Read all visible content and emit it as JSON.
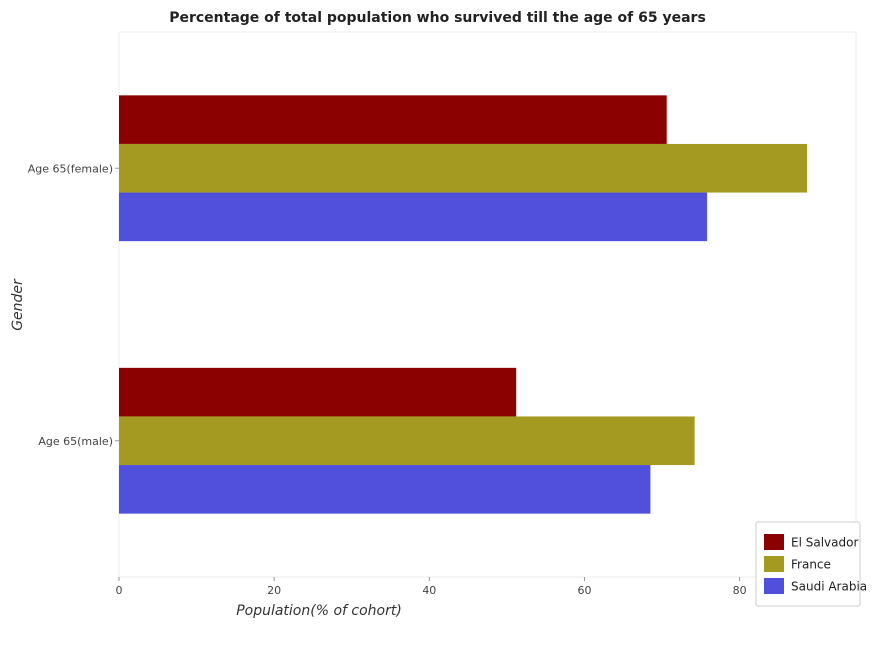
{
  "chart_data": {
    "type": "bar",
    "orientation": "horizontal",
    "title": "Percentage of total population who survived till the age of 65 years",
    "xlabel": "Population(% of cohort)",
    "ylabel": "Gender",
    "xlim": [
      0,
      95
    ],
    "xticks": [
      0,
      20,
      40,
      60,
      80
    ],
    "categories": [
      "Age 65(female)",
      "Age 65(male)"
    ],
    "series": [
      {
        "name": "El Salvador",
        "color": "#8b0000",
        "values": [
          70.6,
          51.2
        ]
      },
      {
        "name": "France",
        "color": "#a49a22",
        "values": [
          88.7,
          74.2
        ]
      },
      {
        "name": "Saudi Arabia",
        "color": "#5050dc",
        "values": [
          75.8,
          68.5
        ]
      }
    ],
    "legend_position": "bottom-right",
    "grid": false
  }
}
